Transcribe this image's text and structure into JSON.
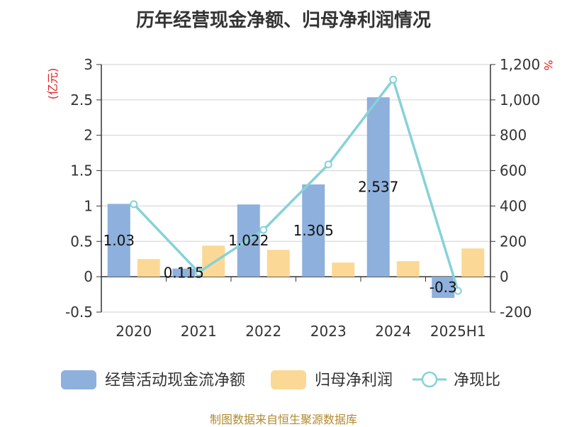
{
  "title": "历年经营现金净额、归母净利润情况",
  "source": "制图数据来自恒生聚源数据库",
  "chart_data": {
    "type": "bar",
    "categories": [
      "2020",
      "2021",
      "2022",
      "2023",
      "2024",
      "2025H1"
    ],
    "left_axis": {
      "unit": "(亿元)",
      "ylim": [
        -0.5,
        3
      ],
      "ticks": [
        "-0.5",
        "0",
        "0.5",
        "1",
        "1.5",
        "2",
        "2.5",
        "3"
      ]
    },
    "right_axis": {
      "unit": "%",
      "ylim": [
        -200,
        1200
      ],
      "ticks": [
        "-200",
        "0",
        "200",
        "400",
        "600",
        "800",
        "1,000",
        "1,200"
      ]
    },
    "grid": true,
    "legend_position": "bottom",
    "series": [
      {
        "name": "经营活动现金流净额",
        "type": "bar",
        "axis": "left",
        "color": "#8eb0dc",
        "values": [
          1.03,
          0.115,
          1.022,
          1.305,
          2.537,
          -0.3
        ],
        "labels": [
          "1.03",
          "0.115",
          "1.022",
          "1.305",
          "2.537",
          "-0.3"
        ]
      },
      {
        "name": "归母净利润",
        "type": "bar",
        "axis": "left",
        "color": "#fcd896",
        "values": [
          0.25,
          0.44,
          0.38,
          0.2,
          0.22,
          0.4
        ]
      },
      {
        "name": "净现比",
        "type": "line",
        "axis": "right",
        "color": "#86d2d8",
        "values": [
          410,
          25,
          265,
          635,
          1115,
          -80
        ]
      }
    ]
  }
}
